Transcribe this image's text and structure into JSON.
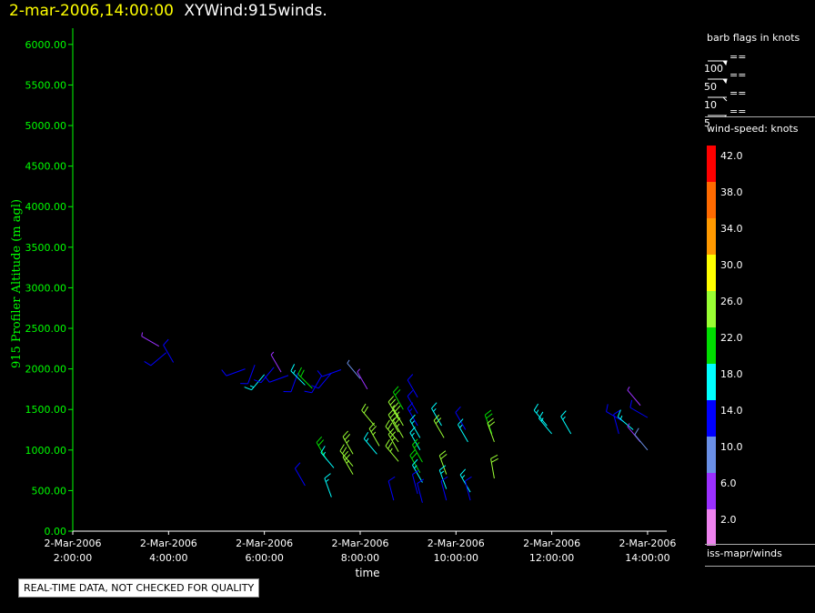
{
  "header": {
    "datetime": "2-mar-2006,14:00:00",
    "product": "XYWind:915winds."
  },
  "disclaimer": "REAL-TIME DATA, NOT CHECKED FOR QUALITY",
  "legend": {
    "barb_title": "barb flags in knots",
    "barbs": [
      {
        "label": "== 100",
        "kind": "pennant"
      },
      {
        "label": "== 50",
        "kind": "pennant"
      },
      {
        "label": "== 10",
        "kind": "full"
      },
      {
        "label": "== 5",
        "kind": "half"
      }
    ],
    "speed_title": "wind-speed: knots",
    "scale": [
      {
        "label": "42.0",
        "color": "#ff0000"
      },
      {
        "label": "38.0",
        "color": "#ff6a00"
      },
      {
        "label": "34.0",
        "color": "#ff9900"
      },
      {
        "label": "30.0",
        "color": "#ffff00"
      },
      {
        "label": "26.0",
        "color": "#99ff33"
      },
      {
        "label": "22.0",
        "color": "#00dd00"
      },
      {
        "label": "18.0",
        "color": "#00ffff"
      },
      {
        "label": "14.0",
        "color": "#0000ff"
      },
      {
        "label": "10.0",
        "color": "#6a8fe6"
      },
      {
        "label": "6.0",
        "color": "#9b30ff"
      },
      {
        "label": "2.0",
        "color": "#ee82ee"
      }
    ],
    "source": "iss-mapr/winds"
  },
  "chart_data": {
    "type": "scatter",
    "ylabel": "915 Profiler Altitude (m agl)",
    "xlabel": "time",
    "ylim": [
      0,
      6200
    ],
    "yticks": [
      "0.00",
      "500.00",
      "1000.00",
      "1500.00",
      "2000.00",
      "2500.00",
      "3000.00",
      "3500.00",
      "4000.00",
      "4500.00",
      "5000.00",
      "5500.00",
      "6000.00"
    ],
    "xlim": [
      2.0,
      14.4
    ],
    "xticks": [
      {
        "hour": 2,
        "date": "2-Mar-2006",
        "time": "2:00:00"
      },
      {
        "hour": 4,
        "date": "2-Mar-2006",
        "time": "4:00:00"
      },
      {
        "hour": 6,
        "date": "2-Mar-2006",
        "time": "6:00:00"
      },
      {
        "hour": 8,
        "date": "2-Mar-2006",
        "time": "8:00:00"
      },
      {
        "hour": 10,
        "date": "2-Mar-2006",
        "time": "10:00:00"
      },
      {
        "hour": 12,
        "date": "2-Mar-2006",
        "time": "12:00:00"
      },
      {
        "hour": 14,
        "date": "2-Mar-2006",
        "time": "14:00:00"
      }
    ],
    "barbs": [
      {
        "t": 3.8,
        "alt": 2280,
        "spd": 7,
        "dir": 300
      },
      {
        "t": 3.95,
        "alt": 2200,
        "spd": 12,
        "dir": 230
      },
      {
        "t": 4.1,
        "alt": 2080,
        "spd": 13,
        "dir": 330
      },
      {
        "t": 5.6,
        "alt": 2000,
        "spd": 14,
        "dir": 250
      },
      {
        "t": 5.8,
        "alt": 2050,
        "spd": 13,
        "dir": 200
      },
      {
        "t": 6.0,
        "alt": 1930,
        "spd": 17,
        "dir": 220
      },
      {
        "t": 6.2,
        "alt": 2020,
        "spd": 13,
        "dir": 220
      },
      {
        "t": 6.35,
        "alt": 1960,
        "spd": 7,
        "dir": 330
      },
      {
        "t": 6.5,
        "alt": 1920,
        "spd": 13,
        "dir": 250
      },
      {
        "t": 6.7,
        "alt": 1950,
        "spd": 12,
        "dir": 200
      },
      {
        "t": 6.85,
        "alt": 1800,
        "spd": 19,
        "dir": 315
      },
      {
        "t": 7.0,
        "alt": 1760,
        "spd": 22,
        "dir": 315
      },
      {
        "t": 7.2,
        "alt": 1920,
        "spd": 13,
        "dir": 210
      },
      {
        "t": 7.4,
        "alt": 1950,
        "spd": 12,
        "dir": 220
      },
      {
        "t": 7.6,
        "alt": 1990,
        "spd": 13,
        "dir": 250
      },
      {
        "t": 8.0,
        "alt": 1880,
        "spd": 9,
        "dir": 320
      },
      {
        "t": 8.15,
        "alt": 1750,
        "spd": 7,
        "dir": 330
      },
      {
        "t": 6.85,
        "alt": 560,
        "spd": 14,
        "dir": 330
      },
      {
        "t": 7.4,
        "alt": 420,
        "spd": 18,
        "dir": 340
      },
      {
        "t": 7.3,
        "alt": 880,
        "spd": 23,
        "dir": 330
      },
      {
        "t": 7.45,
        "alt": 780,
        "spd": 18,
        "dir": 320
      },
      {
        "t": 7.85,
        "alt": 950,
        "spd": 25,
        "dir": 330
      },
      {
        "t": 7.85,
        "alt": 800,
        "spd": 24,
        "dir": 320
      },
      {
        "t": 7.85,
        "alt": 700,
        "spd": 25,
        "dir": 330
      },
      {
        "t": 8.3,
        "alt": 1300,
        "spd": 24,
        "dir": 320
      },
      {
        "t": 8.4,
        "alt": 1050,
        "spd": 26,
        "dir": 330
      },
      {
        "t": 8.35,
        "alt": 950,
        "spd": 19,
        "dir": 320
      },
      {
        "t": 8.8,
        "alt": 1380,
        "spd": 26,
        "dir": 330
      },
      {
        "t": 8.8,
        "alt": 1220,
        "spd": 25,
        "dir": 330
      },
      {
        "t": 8.8,
        "alt": 1100,
        "spd": 24,
        "dir": 320
      },
      {
        "t": 8.8,
        "alt": 980,
        "spd": 26,
        "dir": 330
      },
      {
        "t": 8.8,
        "alt": 860,
        "spd": 25,
        "dir": 320
      },
      {
        "t": 8.9,
        "alt": 1500,
        "spd": 23,
        "dir": 330
      },
      {
        "t": 8.9,
        "alt": 1300,
        "spd": 25,
        "dir": 330
      },
      {
        "t": 8.9,
        "alt": 1150,
        "spd": 25,
        "dir": 330
      },
      {
        "t": 9.2,
        "alt": 1650,
        "spd": 14,
        "dir": 330
      },
      {
        "t": 9.2,
        "alt": 1450,
        "spd": 14,
        "dir": 330
      },
      {
        "t": 9.2,
        "alt": 1300,
        "spd": 15,
        "dir": 330
      },
      {
        "t": 9.25,
        "alt": 1150,
        "spd": 18,
        "dir": 330
      },
      {
        "t": 9.25,
        "alt": 1000,
        "spd": 18,
        "dir": 330
      },
      {
        "t": 9.3,
        "alt": 850,
        "spd": 22,
        "dir": 330
      },
      {
        "t": 9.25,
        "alt": 720,
        "spd": 20,
        "dir": 330
      },
      {
        "t": 9.3,
        "alt": 600,
        "spd": 19,
        "dir": 330
      },
      {
        "t": 9.2,
        "alt": 460,
        "spd": 14,
        "dir": 345
      },
      {
        "t": 9.3,
        "alt": 350,
        "spd": 14,
        "dir": 345
      },
      {
        "t": 8.7,
        "alt": 380,
        "spd": 14,
        "dir": 345
      },
      {
        "t": 9.7,
        "alt": 1300,
        "spd": 18,
        "dir": 330
      },
      {
        "t": 9.75,
        "alt": 1150,
        "spd": 24,
        "dir": 330
      },
      {
        "t": 9.8,
        "alt": 700,
        "spd": 24,
        "dir": 340
      },
      {
        "t": 9.8,
        "alt": 520,
        "spd": 18,
        "dir": 340
      },
      {
        "t": 9.8,
        "alt": 380,
        "spd": 14,
        "dir": 345
      },
      {
        "t": 10.2,
        "alt": 1250,
        "spd": 14,
        "dir": 330
      },
      {
        "t": 10.25,
        "alt": 1100,
        "spd": 18,
        "dir": 330
      },
      {
        "t": 10.3,
        "alt": 480,
        "spd": 18,
        "dir": 330
      },
      {
        "t": 10.3,
        "alt": 380,
        "spd": 14,
        "dir": 345
      },
      {
        "t": 10.75,
        "alt": 1200,
        "spd": 22,
        "dir": 340
      },
      {
        "t": 10.8,
        "alt": 1100,
        "spd": 24,
        "dir": 340
      },
      {
        "t": 10.8,
        "alt": 650,
        "spd": 24,
        "dir": 350
      },
      {
        "t": 11.9,
        "alt": 1300,
        "spd": 17,
        "dir": 320
      },
      {
        "t": 12.0,
        "alt": 1200,
        "spd": 18,
        "dir": 320
      },
      {
        "t": 12.4,
        "alt": 1200,
        "spd": 18,
        "dir": 330
      },
      {
        "t": 13.4,
        "alt": 1200,
        "spd": 14,
        "dir": 345
      },
      {
        "t": 13.5,
        "alt": 1350,
        "spd": 14,
        "dir": 300
      },
      {
        "t": 13.7,
        "alt": 1250,
        "spd": 17,
        "dir": 310
      },
      {
        "t": 13.85,
        "alt": 1550,
        "spd": 7,
        "dir": 320
      },
      {
        "t": 13.85,
        "alt": 1100,
        "spd": 7,
        "dir": 320
      },
      {
        "t": 14.0,
        "alt": 1400,
        "spd": 12,
        "dir": 300
      },
      {
        "t": 14.0,
        "alt": 1000,
        "spd": 10,
        "dir": 320
      }
    ]
  }
}
